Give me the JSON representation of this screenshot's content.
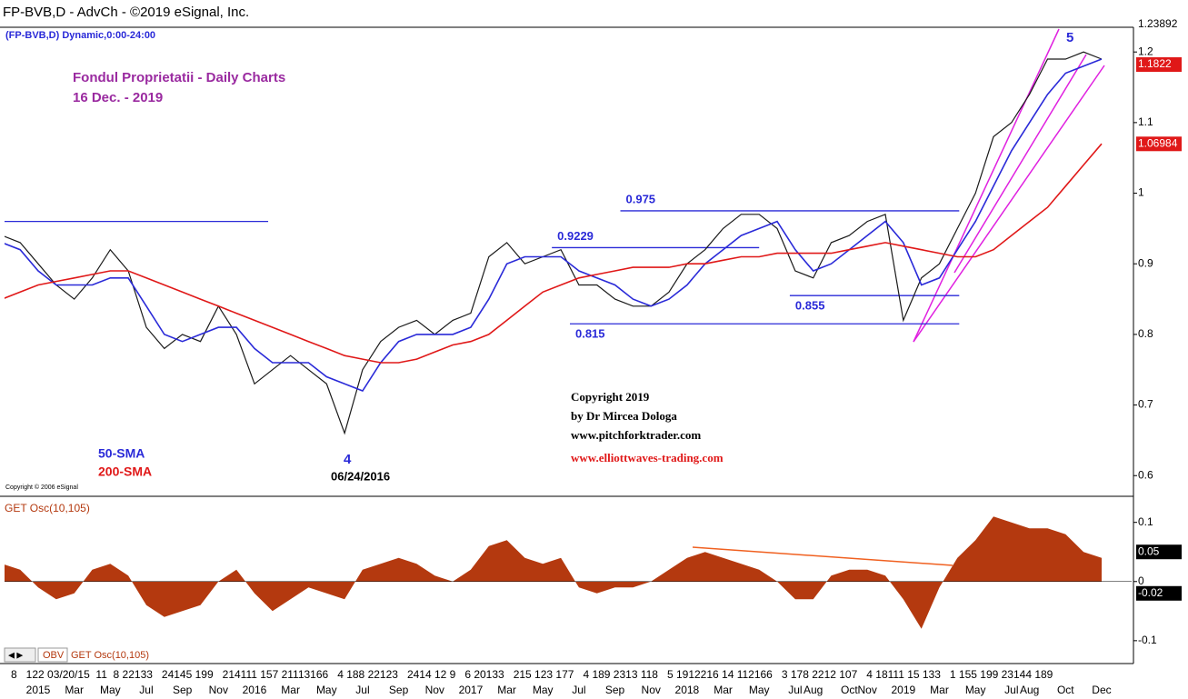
{
  "header": {
    "title": "FP-BVB,D - AdvCh - ©2019 eSignal, Inc.",
    "subtitle": "(FP-BVB,D) Dynamic,0:00-24:00"
  },
  "annotations": {
    "heading": "Fondul Proprietatii - Daily Charts",
    "date": "16 Dec. -  2019",
    "wave5": "5",
    "wave4": "4",
    "wave4_date": "06/24/2016",
    "esignal": "Copyright © 2006 eSignal",
    "copyright": [
      "Copyright 2019",
      "by Dr Mircea Dologa",
      "www.pitchforktrader.com"
    ],
    "link": "www.elliottwaves-trading.com"
  },
  "tabs": [
    "OBV",
    "GET Osc(10,105)"
  ],
  "axis_day_row": "8   122 03/20/15  11  8 22133   24145 199   214111 157 21113166   4 188 22123   2414 12 9   6 20133   215 123 177   4 189 2313 118   5 1912216 14 112166   3 178 2212 107   4 18111 15 133   1 155 199 23144 189",
  "chart_data": [
    {
      "type": "line",
      "categories": [
        null,
        null,
        "2015",
        null,
        "Mar",
        null,
        "May",
        null,
        "Jul",
        null,
        "Sep",
        null,
        "Nov",
        null,
        "2016",
        null,
        "Mar",
        null,
        "May",
        null,
        "Jul",
        null,
        "Sep",
        null,
        "Nov",
        null,
        "2017",
        null,
        "Mar",
        null,
        "May",
        null,
        "Jul",
        null,
        "Sep",
        null,
        "Nov",
        null,
        "2018",
        null,
        "Mar",
        null,
        "May",
        null,
        "Jul",
        "Aug",
        null,
        "Oct",
        "Nov",
        null,
        "2019",
        null,
        "Mar",
        null,
        "May",
        null,
        "Jul",
        "Aug",
        null,
        "Oct",
        null,
        "Dec"
      ],
      "series": [
        {
          "color": "#1a1a1a",
          "values": [
            0.94,
            0.93,
            0.9,
            0.87,
            0.85,
            0.88,
            0.92,
            0.89,
            0.81,
            0.78,
            0.8,
            0.79,
            0.84,
            0.8,
            0.73,
            0.75,
            0.77,
            0.75,
            0.73,
            0.66,
            0.75,
            0.79,
            0.81,
            0.82,
            0.8,
            0.82,
            0.83,
            0.91,
            0.93,
            0.9,
            0.91,
            0.92,
            0.87,
            0.87,
            0.85,
            0.84,
            0.84,
            0.86,
            0.9,
            0.92,
            0.95,
            0.97,
            0.97,
            0.95,
            0.89,
            0.88,
            0.93,
            0.94,
            0.96,
            0.97,
            0.82,
            0.88,
            0.9,
            0.95,
            1.0,
            1.08,
            1.1,
            1.14,
            1.19,
            1.19,
            1.2,
            1.19
          ]
        },
        {
          "name": "50-SMA",
          "color": "#2a2ad8",
          "values": [
            0.93,
            0.92,
            0.89,
            0.87,
            0.87,
            0.87,
            0.88,
            0.88,
            0.84,
            0.8,
            0.79,
            0.8,
            0.81,
            0.81,
            0.78,
            0.76,
            0.76,
            0.76,
            0.74,
            0.73,
            0.72,
            0.76,
            0.79,
            0.8,
            0.8,
            0.8,
            0.81,
            0.85,
            0.9,
            0.91,
            0.91,
            0.91,
            0.89,
            0.88,
            0.87,
            0.85,
            0.84,
            0.85,
            0.87,
            0.9,
            0.92,
            0.94,
            0.95,
            0.96,
            0.92,
            0.89,
            0.9,
            0.92,
            0.94,
            0.96,
            0.93,
            0.87,
            0.88,
            0.92,
            0.96,
            1.01,
            1.06,
            1.1,
            1.14,
            1.17,
            1.18,
            1.19
          ]
        },
        {
          "name": "200-SMA",
          "color": "#e01818",
          "values": [
            0.85,
            0.86,
            0.87,
            0.875,
            0.88,
            0.885,
            0.89,
            0.89,
            0.88,
            0.87,
            0.86,
            0.85,
            0.84,
            0.83,
            0.82,
            0.81,
            0.8,
            0.79,
            0.78,
            0.77,
            0.765,
            0.76,
            0.76,
            0.765,
            0.775,
            0.785,
            0.79,
            0.8,
            0.82,
            0.84,
            0.86,
            0.87,
            0.88,
            0.885,
            0.89,
            0.895,
            0.895,
            0.895,
            0.9,
            0.9,
            0.905,
            0.91,
            0.91,
            0.915,
            0.915,
            0.915,
            0.915,
            0.92,
            0.925,
            0.93,
            0.925,
            0.92,
            0.915,
            0.91,
            0.91,
            0.92,
            0.94,
            0.96,
            0.98,
            1.01,
            1.04,
            1.07
          ]
        }
      ],
      "levels": [
        {
          "value": 0.96,
          "x": [
            0.13,
            14.76
          ]
        },
        {
          "value": 0.975,
          "x": [
            34.3,
            53.1
          ]
        },
        {
          "value": 0.9229,
          "x": [
            30.5,
            42.0
          ]
        },
        {
          "value": 0.855,
          "x": [
            43.7,
            53.1
          ]
        },
        {
          "value": 0.815,
          "x": [
            31.5,
            53.1
          ]
        }
      ],
      "level_color": "#2a2ad8",
      "ylim": [
        0.572,
        1.235
      ],
      "yticks": [
        0.6,
        0.7,
        0.8,
        0.9,
        1,
        1.1,
        1.2
      ],
      "last_labels": {
        "high": 1.23892,
        "close": 1.1822,
        "sma200": 1.06984
      }
    },
    {
      "type": "area",
      "title": "GET Osc(10,105)",
      "color": "#b4390f",
      "values": [
        0.03,
        0.02,
        -0.01,
        -0.03,
        -0.02,
        0.02,
        0.03,
        0.01,
        -0.04,
        -0.06,
        -0.05,
        -0.04,
        0,
        0.02,
        -0.02,
        -0.05,
        -0.03,
        -0.01,
        -0.02,
        -0.03,
        0.02,
        0.03,
        0.04,
        0.03,
        0.01,
        0,
        0.02,
        0.06,
        0.07,
        0.04,
        0.03,
        0.04,
        -0.01,
        -0.02,
        -0.01,
        -0.01,
        0,
        0.02,
        0.04,
        0.05,
        0.04,
        0.03,
        0.02,
        0,
        -0.03,
        -0.03,
        0.01,
        0.02,
        0.02,
        0.01,
        -0.03,
        -0.08,
        -0.01,
        0.04,
        0.07,
        0.11,
        0.1,
        0.09,
        0.09,
        0.08,
        0.05,
        0.04
      ],
      "ylim": [
        -0.111,
        0.141
      ],
      "yticks": [
        -0.1,
        0,
        0.1
      ],
      "last_labels": {
        "upper": 0.05,
        "lower": -0.02
      }
    }
  ]
}
